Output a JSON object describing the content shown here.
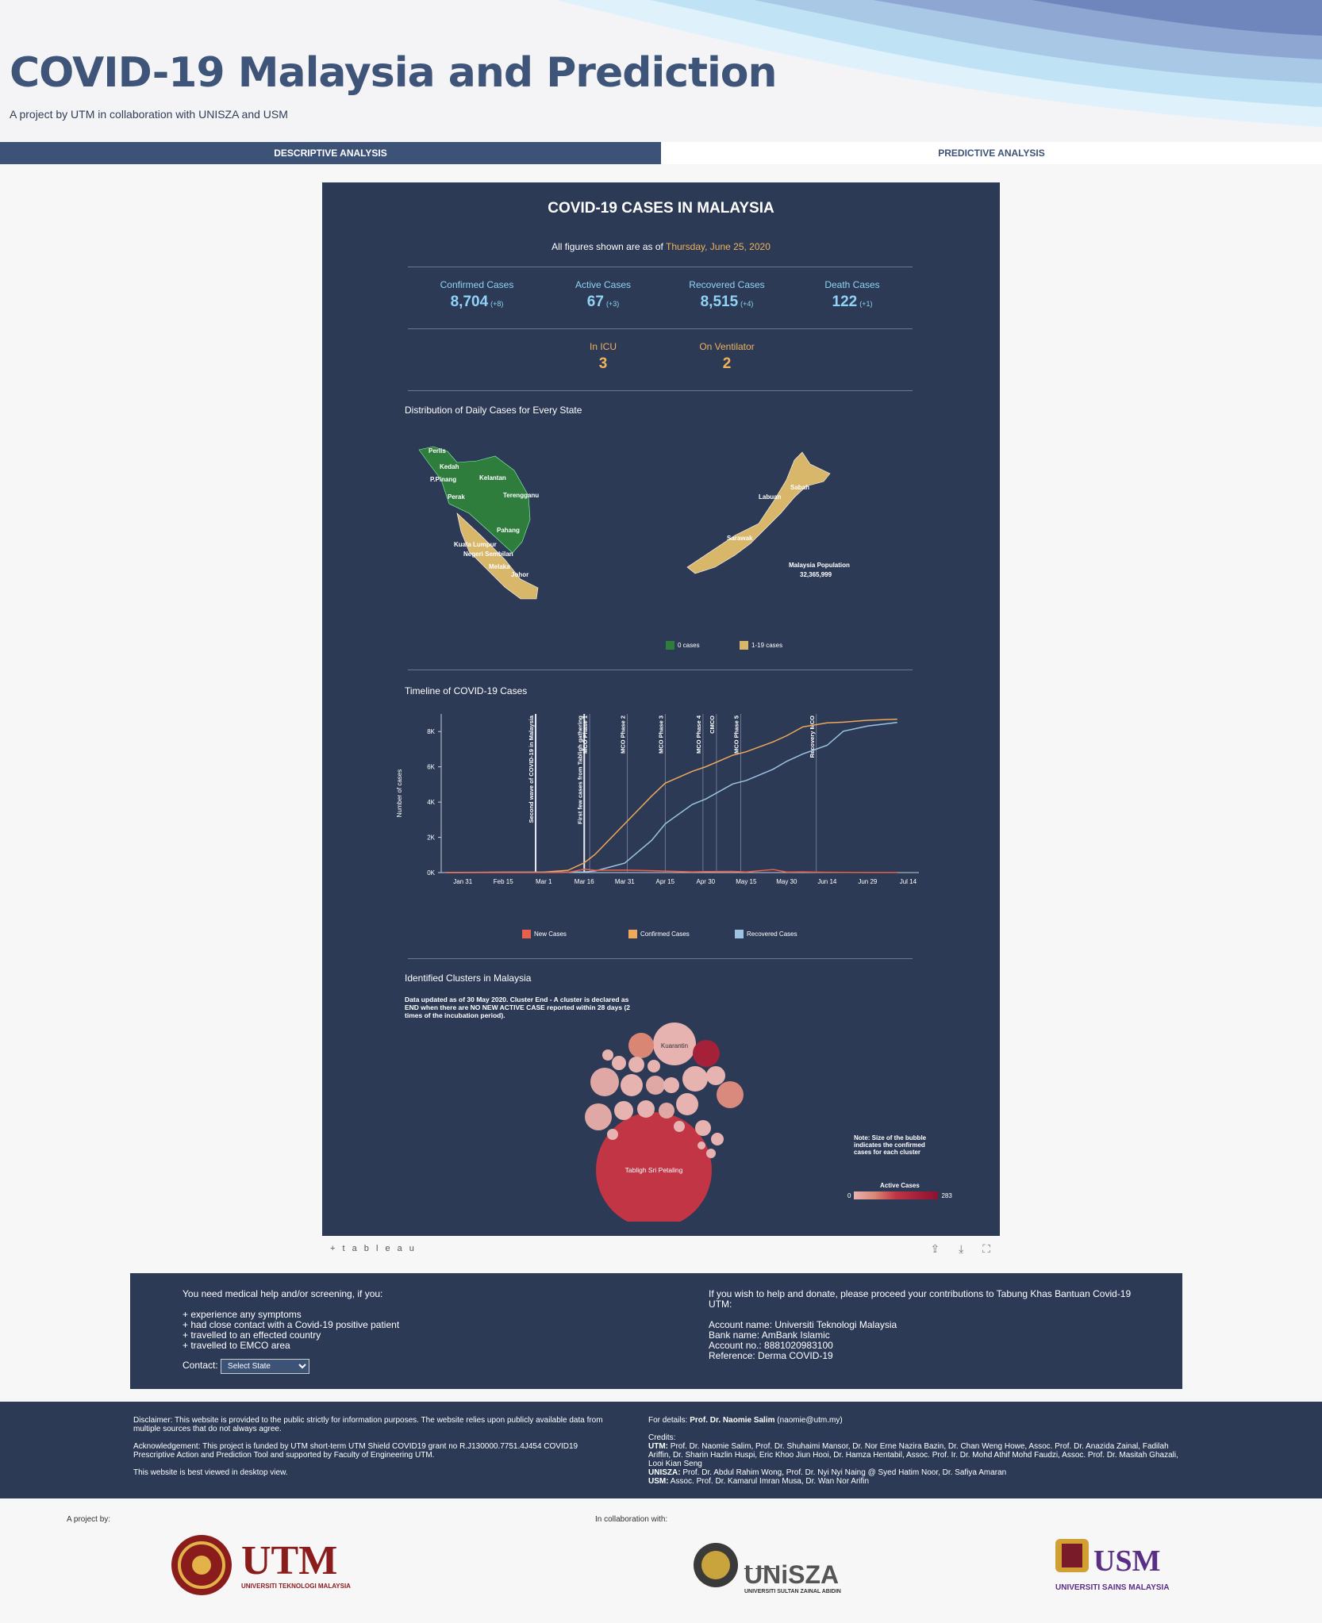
{
  "header": {
    "title": "COVID-19 Malaysia and Prediction",
    "subtitle": "A project by UTM in collaboration with UNISZA and USM"
  },
  "tabs": [
    {
      "label": "DESCRIPTIVE ANALYSIS",
      "active": true
    },
    {
      "label": "PREDICTIVE ANALYSIS",
      "active": false
    }
  ],
  "dashboard": {
    "title": "COVID-19 CASES IN MALAYSIA",
    "asof_prefix": "All figures shown are as of",
    "asof_date": "Thursday, June 25, 2020",
    "stats": [
      {
        "label": "Confirmed Cases",
        "value": "8,704",
        "delta": "(+8)"
      },
      {
        "label": "Active Cases",
        "value": "67",
        "delta": "(+3)"
      },
      {
        "label": "Recovered Cases",
        "value": "8,515",
        "delta": "(+4)"
      },
      {
        "label": "Death Cases",
        "value": "122",
        "delta": "(+1)"
      }
    ],
    "icu": {
      "label": "In ICU",
      "value": "3"
    },
    "ventilator": {
      "label": "On Ventilator",
      "value": "2"
    },
    "map": {
      "title": "Distribution of Daily Cases for Every State",
      "states_west": [
        "Perlis",
        "Kedah",
        "P.Pinang",
        "Kelantan",
        "Perak",
        "Terengganu",
        "Pahang",
        "Kuala Lumpur",
        "Negeri Sembilan",
        "Melaka",
        "Johor"
      ],
      "states_east": [
        "Labuan",
        "Sabah",
        "Sarawak"
      ],
      "population_label": "Malaysia Population",
      "population_value": "32,365,999",
      "legend": [
        {
          "label": "0 cases",
          "color": "#2e7d3c"
        },
        {
          "label": "1-19 cases",
          "color": "#d8b66a"
        }
      ]
    },
    "timeline": {
      "title": "Timeline of COVID-19 Cases",
      "ylabel": "Number of cases",
      "events": [
        "Second wave of COVID-19 in Malaysia",
        "First few cases from Tabligh gathering",
        "MCO Phase 1",
        "MCO Phase 2",
        "MCO Phase 3",
        "MCO Phase 4",
        "CMCO",
        "MCO Phase 5",
        "Recovery MCO"
      ],
      "legend": [
        {
          "label": "New Cases",
          "color": "#e8604c"
        },
        {
          "label": "Confirmed Cases",
          "color": "#f0a85a"
        },
        {
          "label": "Recovered Cases",
          "color": "#9bc4e2"
        }
      ]
    },
    "clusters": {
      "title": "Identified Clusters in Malaysia",
      "note": "Data updated as of 30 May 2020. Cluster End - A cluster is declared as END when there are NO NEW ACTIVE CASE reported within 28 days (2 times of the incubation period).",
      "big_label": "Tabligh Sri Petaling",
      "kuarantin_label": "Kuarantin",
      "size_note": "Note: Size of the bubble indicates the confirmed cases for each cluster",
      "legend_title": "Active Cases",
      "legend_min": "0",
      "legend_max": "283"
    }
  },
  "chart_data": {
    "type": "line",
    "title": "Timeline of COVID-19 Cases",
    "xlabel": "",
    "ylabel": "Number of cases",
    "x_ticks": [
      "Jan 31",
      "Feb 15",
      "Mar 1",
      "Mar 16",
      "Mar 31",
      "Apr 15",
      "Apr 30",
      "May 15",
      "May 30",
      "Jun 14",
      "Jun 29",
      "Jul 14"
    ],
    "y_ticks": [
      "0K",
      "2K",
      "4K",
      "6K",
      "8K"
    ],
    "ylim": [
      0,
      9000
    ],
    "x_dates": [
      "Jan 25",
      "Feb 15",
      "Mar 1",
      "Mar 10",
      "Mar 16",
      "Mar 20",
      "Mar 31",
      "Apr 10",
      "Apr 15",
      "Apr 25",
      "Apr 30",
      "May 10",
      "May 15",
      "May 25",
      "May 30",
      "Jun 5",
      "Jun 14",
      "Jun 20",
      "Jun 29",
      "Jul 10"
    ],
    "series": [
      {
        "name": "Confirmed Cases",
        "values": [
          4,
          22,
          29,
          129,
          553,
          1030,
          2766,
          4346,
          5072,
          5742,
          6002,
          6656,
          6855,
          7417,
          7762,
          8266,
          8494,
          8535,
          8639,
          8704
        ]
      },
      {
        "name": "Recovered Cases",
        "values": [
          0,
          15,
          22,
          24,
          42,
          87,
          537,
          1830,
          2766,
          3862,
          4171,
          5025,
          5223,
          5864,
          6310,
          6731,
          7222,
          8019,
          8314,
          8515
        ]
      },
      {
        "name": "New Cases",
        "values": [
          0,
          0,
          0,
          10,
          190,
          130,
          140,
          109,
          85,
          40,
          57,
          67,
          36,
          172,
          30,
          37,
          19,
          10,
          5,
          8
        ]
      }
    ]
  },
  "help": {
    "intro": "You need medical help and/or screening, if you:",
    "items": [
      "+ experience any symptoms",
      "+ had close contact with a Covid-19 positive patient",
      "+ travelled to an effected country",
      "+ travelled to EMCO area"
    ],
    "contact_label": "Contact:",
    "select_default": "Select State",
    "donate_intro": "If you wish to help and donate, please proceed your contributions to Tabung Khas Bantuan Covid-19 UTM:",
    "account_name": "Account name: Universiti Teknologi Malaysia",
    "bank_name": "Bank name: AmBank Islamic",
    "account_no": "Account no.: 8881020983100",
    "reference": "Reference: Derma COVID-19"
  },
  "footer": {
    "disclaimer": "Disclaimer: This website is provided to the public strictly for information purposes. The website relies upon publicly available data from multiple sources that do not always agree.",
    "acknowledgement": "Acknowledgement: This project is funded by UTM short-term UTM Shield COVID19 grant no R.J130000.7751.4J454 COVID19 Prescriptive Action and Prediction Tool and supported by Faculty of Engineering UTM.",
    "desktop": "This website is best viewed in desktop view.",
    "details_prefix": "For details:",
    "details_name": "Prof. Dr. Naomie Salim",
    "details_email": "(naomie@utm.my)",
    "credits_label": "Credits:",
    "credits_utm_label": "UTM:",
    "credits_utm": "Prof. Dr. Naomie Salim, Prof. Dr. Shuhaimi Mansor, Dr. Nor Erne Nazira Bazin, Dr. Chan Weng Howe, Assoc. Prof. Dr. Anazida Zainal, Fadilah Ariffin, Dr. Sharin Hazlin Huspi, Eric Khoo Jiun Hooi, Dr. Hamza Hentabil, Assoc. Prof. Ir. Dr. Mohd Athif Mohd Faudzi, Assoc. Prof. Dr. Masitah Ghazali, Looi Kian Seng",
    "credits_unisza_label": "UNISZA:",
    "credits_unisza": "Prof. Dr. Abdul Rahim Wong, Prof. Dr. Nyi Nyi Naing @ Syed Hatim Noor, Dr. Safiya Amaran",
    "credits_usm_label": "USM:",
    "credits_usm": "Assoc. Prof. Dr. Kamarul Imran Musa, Dr. Wan Nor Arifin"
  },
  "logos": {
    "project_by": "A project by:",
    "collab": "In collaboration with:",
    "utm": "UTM",
    "utm_full": "UNIVERSITI TEKNOLOGI MALAYSIA",
    "unisza": "UNiSZA",
    "unisza_full": "UNIVERSITI SULTAN ZAINAL ABIDIN",
    "usm": "USM",
    "usm_full": "UNIVERSITI SAINS MALAYSIA"
  },
  "tableau": {
    "logo": "+ t a b l e a u"
  },
  "colors": {
    "navy": "#2c3a56",
    "accent": "#3c5276",
    "orange": "#f0b35a",
    "cyan": "#8fd3f5"
  }
}
